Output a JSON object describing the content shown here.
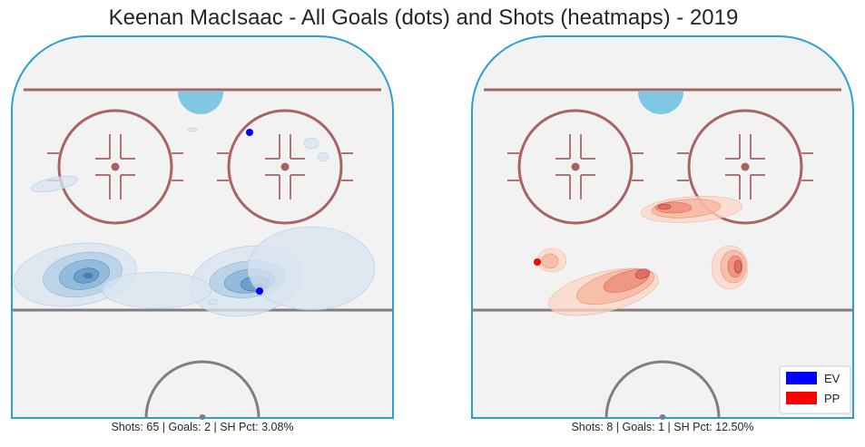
{
  "title": "Keenan MacIsaac - All Goals (dots) and Shots (heatmaps) - 2019",
  "colors": {
    "ev": "#0000ff",
    "pp": "#ff0000",
    "rink_border": "#2a9fd6",
    "ice": "#f2f2f2",
    "red_line": "#a86465",
    "blue_line": "#7f7f7f",
    "crease": "#7ec8e3",
    "ev_heat": [
      "#d8e4f0",
      "#b2cde4",
      "#86b4d8",
      "#5f97c6",
      "#3f74a8"
    ],
    "pp_heat": [
      "#fbd6c6",
      "#f6b39c",
      "#ec8a76",
      "#d8625a",
      "#a8373c"
    ]
  },
  "chart_data": [
    {
      "type": "scatter",
      "subtype": "kde-heatmap",
      "panel": "left",
      "caption": "Shots: 65 | Goals: 2 | SH Pct: 3.08%",
      "shots": 65,
      "goals": 2,
      "sh_pct": "3.08%",
      "heat_color": "blue",
      "goal_points": [
        {
          "label": "EV",
          "position": "upper-right faceoff circle, top"
        },
        {
          "label": "EV",
          "position": "right slot, above blue line"
        }
      ]
    },
    {
      "type": "scatter",
      "subtype": "kde-heatmap",
      "panel": "right",
      "caption": "Shots: 8 | Goals: 1 | SH Pct: 12.50%",
      "shots": 8,
      "goals": 1,
      "sh_pct": "12.50%",
      "heat_color": "red",
      "goal_points": [
        {
          "label": "PP",
          "position": "left point area"
        }
      ]
    }
  ],
  "legend": {
    "placement": "bottom-right",
    "items": [
      {
        "label": "EV",
        "color": "#0000ff"
      },
      {
        "label": "PP",
        "color": "#ff0000"
      }
    ]
  }
}
